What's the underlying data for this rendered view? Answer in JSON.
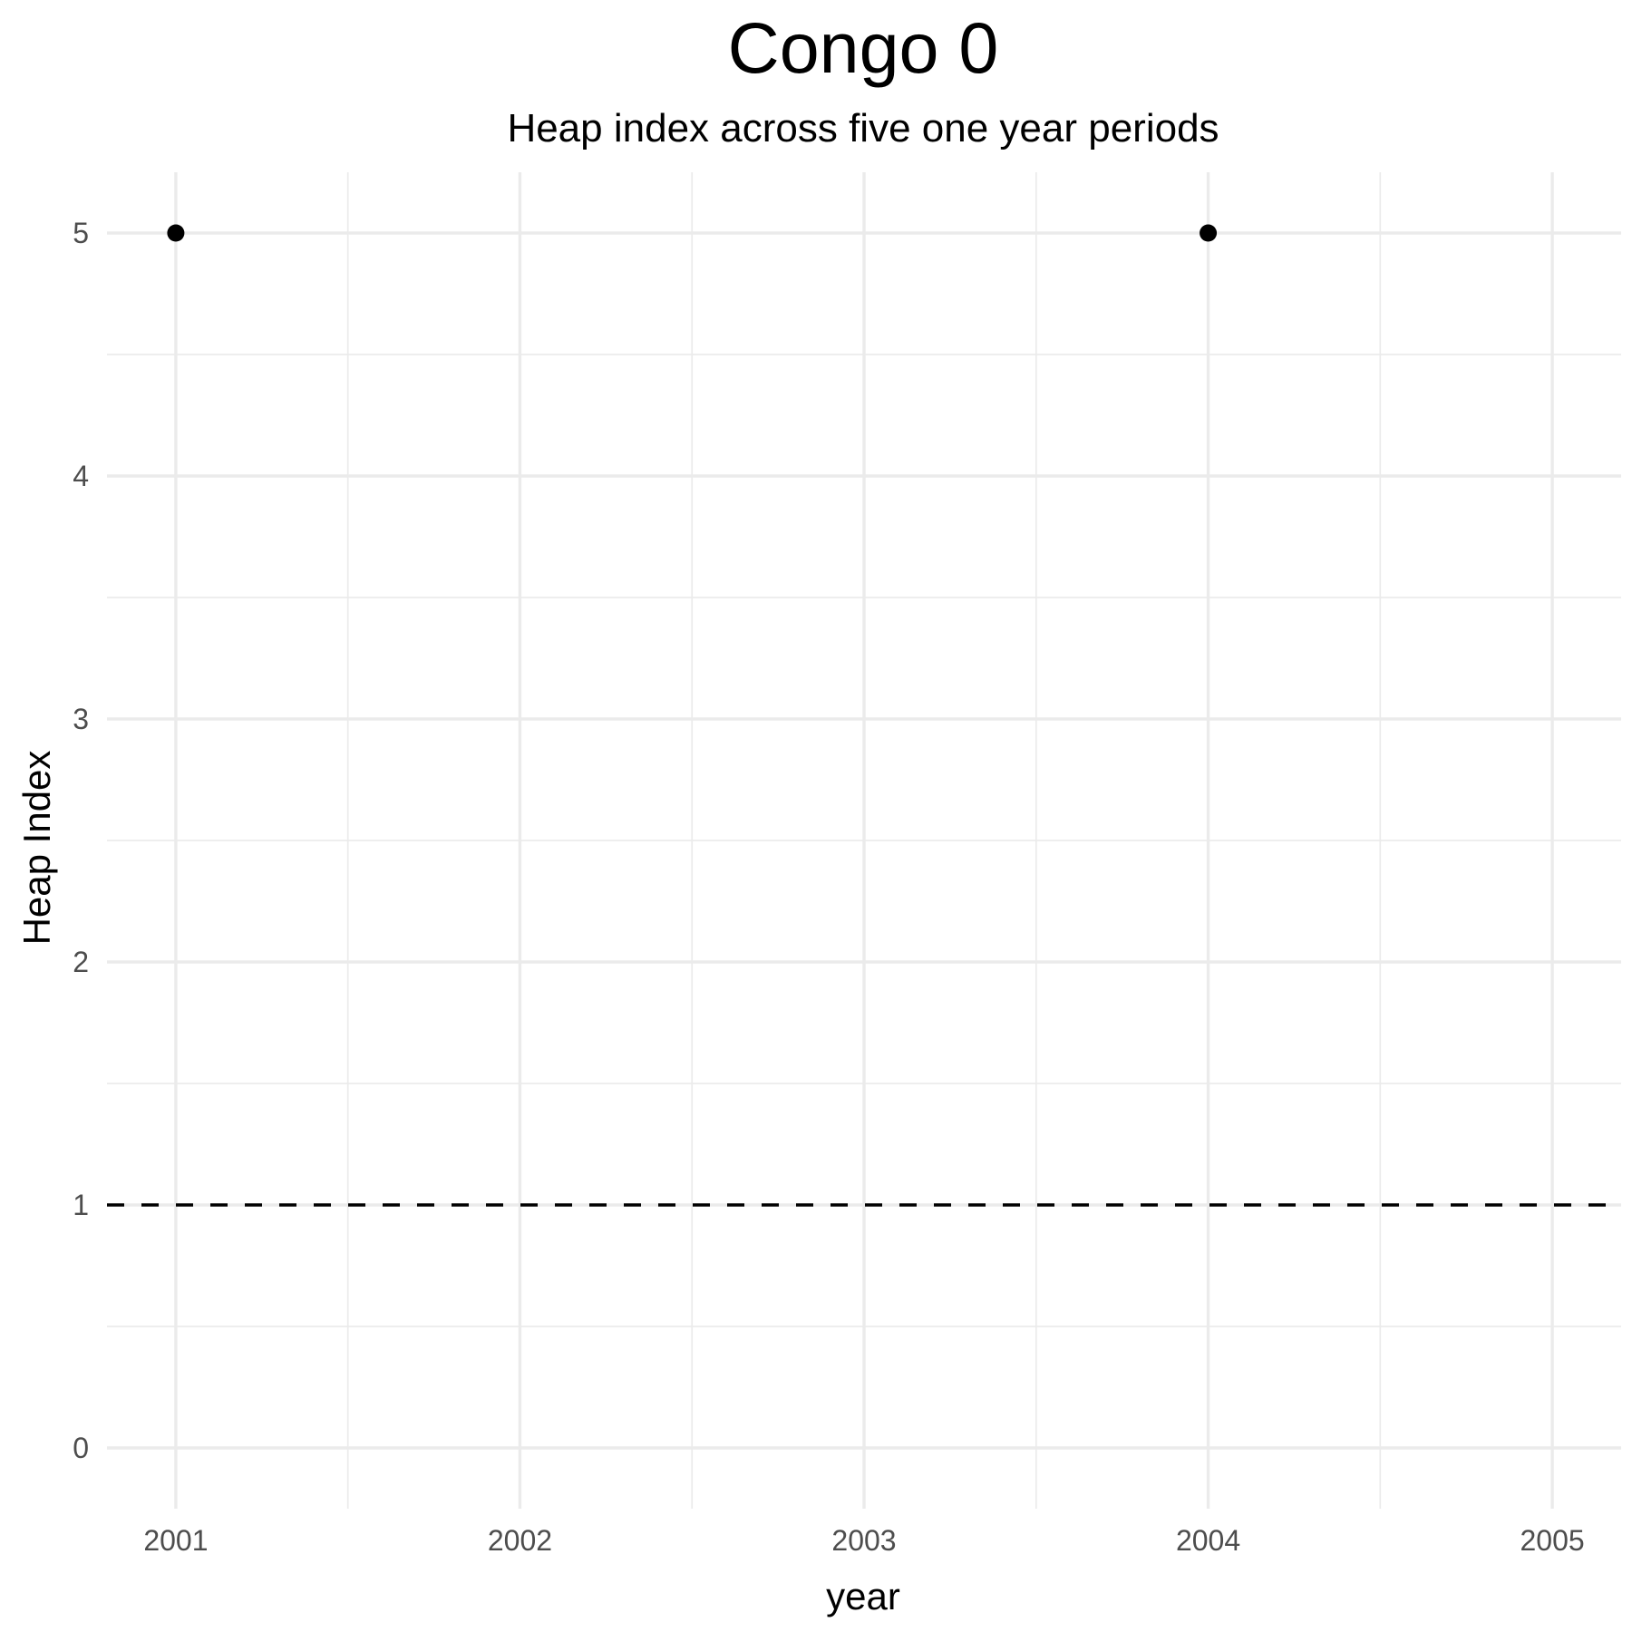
{
  "chart_data": {
    "type": "scatter",
    "title": "Congo 0",
    "subtitle": "Heap index across five one year periods",
    "xlabel": "year",
    "ylabel": "Heap Index",
    "x_ticks": [
      2001,
      2002,
      2003,
      2004,
      2005
    ],
    "y_ticks": [
      0,
      1,
      2,
      3,
      4,
      5
    ],
    "xlim": [
      2000.8,
      2005.2
    ],
    "ylim": [
      -0.25,
      5.25
    ],
    "grid": true,
    "legend": "none",
    "reference_line": {
      "y": 1,
      "style": "dashed",
      "color": "#000000"
    },
    "points": [
      {
        "x": 2001,
        "y": 5
      },
      {
        "x": 2004,
        "y": 5
      }
    ],
    "colors": {
      "grid": "#ebebeb",
      "tick_text": "#4d4d4d",
      "point": "#000000"
    }
  }
}
